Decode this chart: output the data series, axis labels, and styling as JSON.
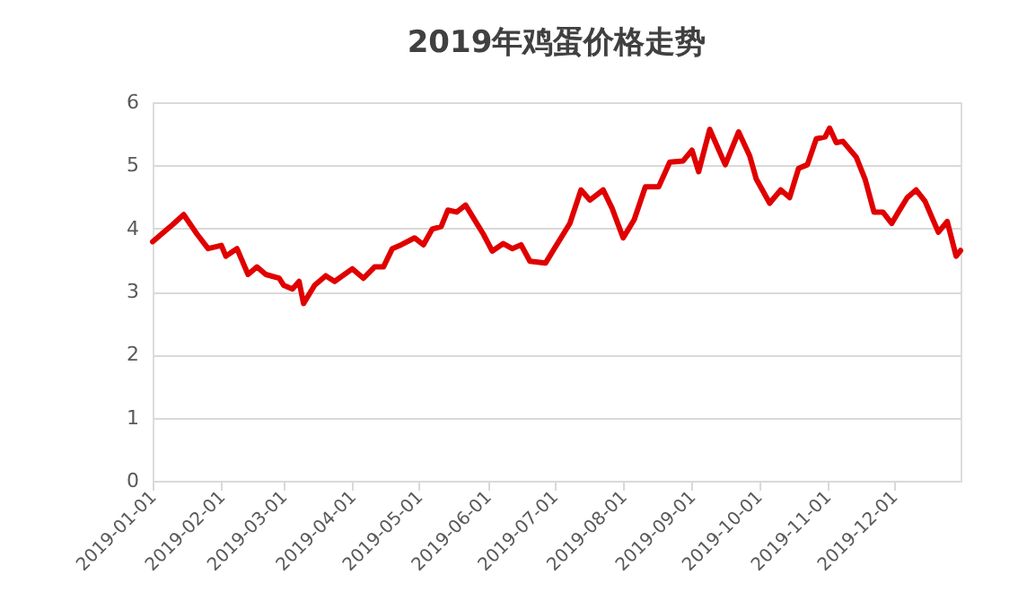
{
  "chart_data": {
    "type": "line",
    "title": "2019年鸡蛋价格走势",
    "x": [
      "2019-01-01",
      "2019-01-05",
      "2019-01-10",
      "2019-01-15",
      "2019-01-21",
      "2019-01-26",
      "2019-02-01",
      "2019-02-03",
      "2019-02-08",
      "2019-02-13",
      "2019-02-17",
      "2019-02-21",
      "2019-02-27",
      "2019-03-01",
      "2019-03-05",
      "2019-03-08",
      "2019-03-10",
      "2019-03-15",
      "2019-03-20",
      "2019-03-24",
      "2019-04-01",
      "2019-04-06",
      "2019-04-11",
      "2019-04-15",
      "2019-04-19",
      "2019-04-23",
      "2019-04-29",
      "2019-05-03",
      "2019-05-07",
      "2019-05-11",
      "2019-05-14",
      "2019-05-18",
      "2019-05-22",
      "2019-05-26",
      "2019-05-30",
      "2019-06-03",
      "2019-06-08",
      "2019-06-12",
      "2019-06-16",
      "2019-06-20",
      "2019-06-27",
      "2019-07-01",
      "2019-07-08",
      "2019-07-13",
      "2019-07-17",
      "2019-07-23",
      "2019-07-27",
      "2019-08-01",
      "2019-08-06",
      "2019-08-11",
      "2019-08-17",
      "2019-08-22",
      "2019-08-28",
      "2019-09-01",
      "2019-09-04",
      "2019-09-09",
      "2019-09-16",
      "2019-09-22",
      "2019-09-27",
      "2019-09-30",
      "2019-10-06",
      "2019-10-11",
      "2019-10-15",
      "2019-10-19",
      "2019-10-23",
      "2019-10-27",
      "2019-10-31",
      "2019-11-02",
      "2019-11-05",
      "2019-11-08",
      "2019-11-14",
      "2019-11-18",
      "2019-11-22",
      "2019-11-26",
      "2019-11-30",
      "2019-12-03",
      "2019-12-07",
      "2019-12-11",
      "2019-12-15",
      "2019-12-21",
      "2019-12-25",
      "2019-12-29",
      "2019-12-31"
    ],
    "series": [
      {
        "color": "#e00000",
        "values": [
          3.79,
          3.91,
          4.06,
          4.22,
          3.91,
          3.68,
          3.73,
          3.56,
          3.68,
          3.27,
          3.39,
          3.27,
          3.21,
          3.1,
          3.04,
          3.16,
          2.81,
          3.1,
          3.25,
          3.16,
          3.36,
          3.21,
          3.39,
          3.39,
          3.68,
          3.74,
          3.85,
          3.74,
          3.99,
          4.03,
          4.29,
          4.26,
          4.37,
          4.14,
          3.91,
          3.64,
          3.76,
          3.68,
          3.74,
          3.48,
          3.45,
          3.68,
          4.08,
          4.61,
          4.45,
          4.61,
          4.32,
          3.85,
          4.14,
          4.66,
          4.66,
          5.05,
          5.07,
          5.24,
          4.9,
          5.57,
          5.01,
          5.53,
          5.15,
          4.78,
          4.4,
          4.61,
          4.49,
          4.95,
          5.01,
          5.42,
          5.45,
          5.59,
          5.36,
          5.38,
          5.13,
          4.78,
          4.26,
          4.26,
          4.08,
          4.26,
          4.49,
          4.61,
          4.43,
          3.94,
          4.11,
          3.56,
          3.65
        ]
      }
    ],
    "xlim": [
      "2019-01-01",
      "2019-12-31"
    ],
    "xticks": [
      "2019-01-01",
      "2019-02-01",
      "2019-03-01",
      "2019-04-01",
      "2019-05-01",
      "2019-06-01",
      "2019-07-01",
      "2019-08-01",
      "2019-09-01",
      "2019-10-01",
      "2019-11-01",
      "2019-12-01"
    ],
    "ylim": [
      0,
      6
    ],
    "yticks": [
      0,
      1,
      2,
      3,
      4,
      5,
      6
    ],
    "grid": "y"
  }
}
